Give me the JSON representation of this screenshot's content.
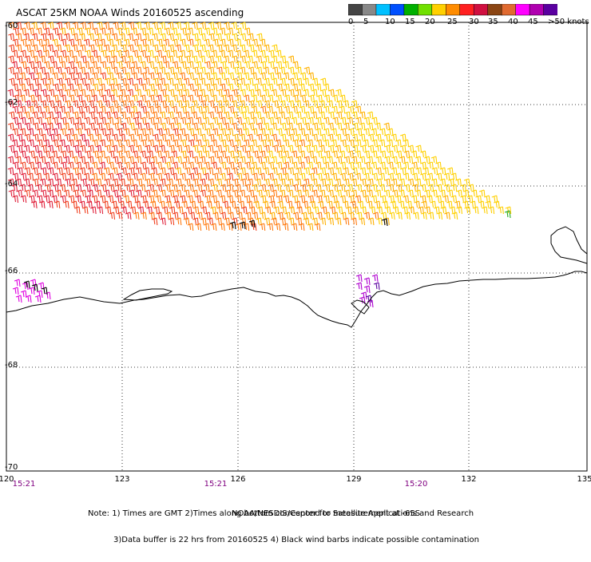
{
  "title": "ASCAT 25KM NOAA Winds 20160525 ascending",
  "legend": {
    "colors": [
      "#444444",
      "#888888",
      "#00c0ff",
      "#0050ff",
      "#00b000",
      "#70e000",
      "#ffd000",
      "#ff8c00",
      "#ff2020",
      "#d01040",
      "#8b4513",
      "#e06a30",
      "#ff00ff",
      "#b000b0",
      "#5a00a0"
    ],
    "labels": [
      "0",
      "5",
      "10",
      "15",
      "20",
      "25",
      "30",
      "35",
      "40",
      "45",
      ">50 knots"
    ]
  },
  "map": {
    "lat_labels": [
      "-60",
      "-62",
      "-64",
      "-66",
      "-68",
      "-70"
    ],
    "lon_labels": [
      "120",
      "123",
      "126",
      "129",
      "132",
      "135"
    ],
    "time_labels": [
      "15:21",
      "15:21",
      "15:20"
    ]
  },
  "notes": {
    "line1": "Note: 1) Times are GMT 2)Times along bottom correspond to measurement at -65S",
    "line2": "3)Data buffer is 22 hrs from 20160525 4) Black wind barbs indicate possible contamination",
    "credit": "NOAA/NESDIS/Center for Satellite Applications and Research"
  }
}
